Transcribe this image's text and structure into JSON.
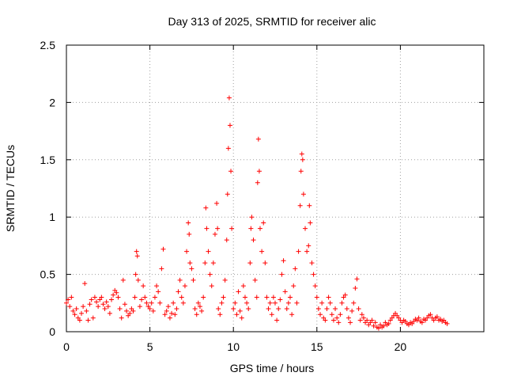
{
  "chart_data": {
    "type": "scatter",
    "title": "Day 313 of 2025, SRMTID for receiver alic",
    "xlabel": "GPS time / hours",
    "ylabel": "SRMTID / TECUs",
    "xlim": [
      0,
      25
    ],
    "ylim": [
      0,
      2.5
    ],
    "x_ticks": [
      0,
      5,
      10,
      15,
      20
    ],
    "x_tick_labels": [
      "0",
      "5",
      "10",
      "15",
      "20"
    ],
    "y_ticks": [
      0,
      0.5,
      1,
      1.5,
      2,
      2.5
    ],
    "y_tick_labels": [
      "0",
      "0.5",
      "1",
      "1.5",
      "2",
      "2.5"
    ],
    "grid": true,
    "marker": "+",
    "series_color": "#ff0000",
    "series": [
      {
        "name": "SRMTID",
        "points": [
          [
            0.0,
            0.25
          ],
          [
            0.1,
            0.28
          ],
          [
            0.2,
            0.22
          ],
          [
            0.3,
            0.3
          ],
          [
            0.4,
            0.18
          ],
          [
            0.5,
            0.15
          ],
          [
            0.6,
            0.2
          ],
          [
            0.7,
            0.12
          ],
          [
            0.8,
            0.1
          ],
          [
            0.9,
            0.16
          ],
          [
            1.0,
            0.22
          ],
          [
            1.1,
            0.42
          ],
          [
            1.2,
            0.18
          ],
          [
            1.3,
            0.1
          ],
          [
            1.4,
            0.24
          ],
          [
            1.5,
            0.28
          ],
          [
            1.6,
            0.12
          ],
          [
            1.7,
            0.3
          ],
          [
            1.8,
            0.26
          ],
          [
            1.9,
            0.22
          ],
          [
            2.0,
            0.28
          ],
          [
            2.1,
            0.3
          ],
          [
            2.2,
            0.24
          ],
          [
            2.3,
            0.2
          ],
          [
            2.4,
            0.26
          ],
          [
            2.5,
            0.22
          ],
          [
            2.6,
            0.16
          ],
          [
            2.7,
            0.28
          ],
          [
            2.8,
            0.32
          ],
          [
            2.9,
            0.36
          ],
          [
            3.0,
            0.34
          ],
          [
            3.1,
            0.3
          ],
          [
            3.2,
            0.2
          ],
          [
            3.3,
            0.12
          ],
          [
            3.4,
            0.45
          ],
          [
            3.5,
            0.24
          ],
          [
            3.6,
            0.18
          ],
          [
            3.7,
            0.14
          ],
          [
            3.8,
            0.16
          ],
          [
            3.9,
            0.2
          ],
          [
            4.0,
            0.18
          ],
          [
            4.1,
            0.3
          ],
          [
            4.15,
            0.5
          ],
          [
            4.2,
            0.7
          ],
          [
            4.25,
            0.66
          ],
          [
            4.3,
            0.45
          ],
          [
            4.4,
            0.22
          ],
          [
            4.5,
            0.28
          ],
          [
            4.6,
            0.4
          ],
          [
            4.7,
            0.3
          ],
          [
            4.8,
            0.25
          ],
          [
            4.9,
            0.22
          ],
          [
            5.0,
            0.2
          ],
          [
            5.1,
            0.25
          ],
          [
            5.2,
            0.18
          ],
          [
            5.3,
            0.3
          ],
          [
            5.4,
            0.4
          ],
          [
            5.5,
            0.35
          ],
          [
            5.6,
            0.25
          ],
          [
            5.7,
            0.55
          ],
          [
            5.8,
            0.72
          ],
          [
            5.9,
            0.15
          ],
          [
            6.0,
            0.18
          ],
          [
            6.1,
            0.22
          ],
          [
            6.2,
            0.12
          ],
          [
            6.3,
            0.16
          ],
          [
            6.4,
            0.25
          ],
          [
            6.5,
            0.15
          ],
          [
            6.6,
            0.2
          ],
          [
            6.7,
            0.35
          ],
          [
            6.8,
            0.45
          ],
          [
            6.9,
            0.3
          ],
          [
            7.0,
            0.25
          ],
          [
            7.1,
            0.4
          ],
          [
            7.2,
            0.7
          ],
          [
            7.3,
            0.95
          ],
          [
            7.35,
            0.85
          ],
          [
            7.4,
            0.6
          ],
          [
            7.5,
            0.55
          ],
          [
            7.6,
            0.45
          ],
          [
            7.7,
            0.2
          ],
          [
            7.8,
            0.15
          ],
          [
            7.9,
            0.25
          ],
          [
            8.0,
            0.22
          ],
          [
            8.1,
            0.18
          ],
          [
            8.2,
            0.3
          ],
          [
            8.3,
            0.6
          ],
          [
            8.35,
            1.08
          ],
          [
            8.4,
            0.9
          ],
          [
            8.5,
            0.7
          ],
          [
            8.6,
            0.5
          ],
          [
            8.7,
            0.4
          ],
          [
            8.8,
            0.6
          ],
          [
            8.9,
            0.85
          ],
          [
            9.0,
            1.12
          ],
          [
            9.05,
            0.9
          ],
          [
            9.1,
            0.2
          ],
          [
            9.2,
            0.15
          ],
          [
            9.3,
            0.25
          ],
          [
            9.4,
            0.3
          ],
          [
            9.5,
            0.45
          ],
          [
            9.6,
            0.8
          ],
          [
            9.65,
            1.2
          ],
          [
            9.7,
            1.6
          ],
          [
            9.75,
            2.04
          ],
          [
            9.8,
            1.8
          ],
          [
            9.85,
            1.4
          ],
          [
            9.9,
            0.9
          ],
          [
            10.0,
            0.2
          ],
          [
            10.1,
            0.25
          ],
          [
            10.2,
            0.15
          ],
          [
            10.3,
            0.35
          ],
          [
            10.4,
            0.18
          ],
          [
            10.5,
            0.12
          ],
          [
            10.6,
            0.4
          ],
          [
            10.7,
            0.3
          ],
          [
            10.8,
            0.25
          ],
          [
            10.9,
            0.2
          ],
          [
            11.0,
            0.6
          ],
          [
            11.05,
            0.9
          ],
          [
            11.1,
            1.0
          ],
          [
            11.2,
            0.8
          ],
          [
            11.3,
            0.45
          ],
          [
            11.4,
            0.3
          ],
          [
            11.45,
            1.3
          ],
          [
            11.5,
            1.68
          ],
          [
            11.55,
            1.4
          ],
          [
            11.6,
            0.9
          ],
          [
            11.7,
            0.7
          ],
          [
            11.8,
            0.95
          ],
          [
            11.9,
            0.6
          ],
          [
            12.0,
            0.3
          ],
          [
            12.1,
            0.2
          ],
          [
            12.2,
            0.25
          ],
          [
            12.3,
            0.15
          ],
          [
            12.4,
            0.3
          ],
          [
            12.5,
            0.25
          ],
          [
            12.6,
            0.1
          ],
          [
            12.7,
            0.2
          ],
          [
            12.8,
            0.28
          ],
          [
            12.9,
            0.5
          ],
          [
            13.0,
            0.62
          ],
          [
            13.1,
            0.35
          ],
          [
            13.2,
            0.2
          ],
          [
            13.3,
            0.25
          ],
          [
            13.4,
            0.3
          ],
          [
            13.5,
            0.15
          ],
          [
            13.6,
            0.4
          ],
          [
            13.7,
            0.55
          ],
          [
            13.8,
            0.25
          ],
          [
            13.9,
            0.7
          ],
          [
            14.0,
            1.1
          ],
          [
            14.05,
            1.4
          ],
          [
            14.1,
            1.55
          ],
          [
            14.15,
            1.5
          ],
          [
            14.2,
            1.2
          ],
          [
            14.3,
            0.9
          ],
          [
            14.4,
            0.7
          ],
          [
            14.5,
            0.75
          ],
          [
            14.55,
            1.1
          ],
          [
            14.6,
            0.95
          ],
          [
            14.7,
            0.6
          ],
          [
            14.8,
            0.5
          ],
          [
            14.9,
            0.4
          ],
          [
            15.0,
            0.3
          ],
          [
            15.1,
            0.2
          ],
          [
            15.2,
            0.15
          ],
          [
            15.3,
            0.25
          ],
          [
            15.4,
            0.12
          ],
          [
            15.5,
            0.1
          ],
          [
            15.6,
            0.2
          ],
          [
            15.7,
            0.3
          ],
          [
            15.8,
            0.25
          ],
          [
            15.9,
            0.15
          ],
          [
            16.0,
            0.1
          ],
          [
            16.1,
            0.2
          ],
          [
            16.2,
            0.12
          ],
          [
            16.3,
            0.08
          ],
          [
            16.4,
            0.15
          ],
          [
            16.5,
            0.25
          ],
          [
            16.6,
            0.3
          ],
          [
            16.7,
            0.32
          ],
          [
            16.8,
            0.2
          ],
          [
            16.9,
            0.12
          ],
          [
            17.0,
            0.08
          ],
          [
            17.1,
            0.18
          ],
          [
            17.2,
            0.25
          ],
          [
            17.3,
            0.38
          ],
          [
            17.4,
            0.46
          ],
          [
            17.5,
            0.2
          ],
          [
            17.6,
            0.1
          ],
          [
            17.7,
            0.15
          ],
          [
            17.8,
            0.12
          ],
          [
            17.9,
            0.08
          ],
          [
            18.0,
            0.1
          ],
          [
            18.1,
            0.06
          ],
          [
            18.2,
            0.08
          ],
          [
            18.3,
            0.1
          ],
          [
            18.4,
            0.05
          ],
          [
            18.5,
            0.08
          ],
          [
            18.6,
            0.04
          ],
          [
            18.7,
            0.03
          ],
          [
            18.8,
            0.06
          ],
          [
            18.9,
            0.04
          ],
          [
            19.0,
            0.05
          ],
          [
            19.1,
            0.08
          ],
          [
            19.2,
            0.06
          ],
          [
            19.3,
            0.07
          ],
          [
            19.4,
            0.1
          ],
          [
            19.5,
            0.12
          ],
          [
            19.6,
            0.14
          ],
          [
            19.7,
            0.16
          ],
          [
            19.8,
            0.14
          ],
          [
            19.9,
            0.12
          ],
          [
            20.0,
            0.1
          ],
          [
            20.1,
            0.08
          ],
          [
            20.2,
            0.1
          ],
          [
            20.3,
            0.09
          ],
          [
            20.4,
            0.07
          ],
          [
            20.5,
            0.06
          ],
          [
            20.6,
            0.08
          ],
          [
            20.7,
            0.07
          ],
          [
            20.8,
            0.09
          ],
          [
            20.9,
            0.11
          ],
          [
            21.0,
            0.1
          ],
          [
            21.1,
            0.12
          ],
          [
            21.2,
            0.09
          ],
          [
            21.3,
            0.08
          ],
          [
            21.4,
            0.11
          ],
          [
            21.5,
            0.1
          ],
          [
            21.6,
            0.12
          ],
          [
            21.7,
            0.14
          ],
          [
            21.8,
            0.15
          ],
          [
            21.9,
            0.12
          ],
          [
            22.0,
            0.1
          ],
          [
            22.1,
            0.12
          ],
          [
            22.2,
            0.13
          ],
          [
            22.3,
            0.1
          ],
          [
            22.4,
            0.11
          ],
          [
            22.5,
            0.09
          ],
          [
            22.6,
            0.1
          ],
          [
            22.7,
            0.08
          ],
          [
            22.8,
            0.07
          ]
        ]
      }
    ]
  }
}
